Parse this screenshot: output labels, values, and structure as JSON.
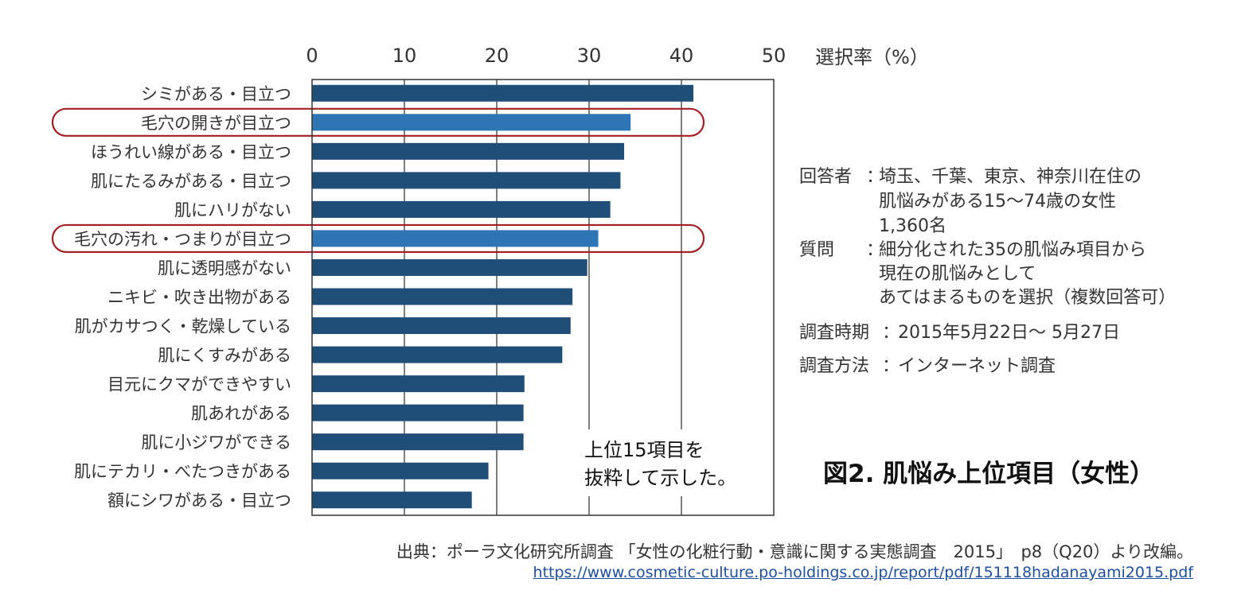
{
  "chart_data": {
    "type": "bar",
    "orientation": "horizontal",
    "axis_title": "選択率（%）",
    "xlim": [
      0,
      50
    ],
    "ticks": [
      0,
      10,
      20,
      30,
      40,
      50
    ],
    "grid": true,
    "categories": [
      "シミがある・目立つ",
      "毛穴の開きが目立つ",
      "ほうれい線がある・目立つ",
      "肌にたるみがある・目立つ",
      "肌にハリがない",
      "毛穴の汚れ・つまりが目立つ",
      "肌に透明感がない",
      "ニキビ・吹き出物がある",
      "肌がカサつく・乾燥している",
      "肌にくすみがある",
      "目元にクマができやすい",
      "肌あれがある",
      "肌に小ジワができる",
      "肌にテカリ・べたつきがある",
      "額にシワがある・目立つ"
    ],
    "values": [
      41.3,
      34.5,
      33.8,
      33.4,
      32.3,
      31.0,
      29.8,
      28.2,
      28.0,
      27.1,
      23.0,
      22.9,
      22.9,
      19.1,
      17.3
    ],
    "highlighted": [
      "毛穴の開きが目立つ",
      "毛穴の汚れ・つまりが目立つ"
    ],
    "annotation": [
      "上位15項目を",
      "抜粋して示した。"
    ],
    "colors": {
      "bar": "#1f4e79",
      "highlight_bar": "#2e75b6",
      "highlight_outline": "#a31f24",
      "grid": "#555555"
    }
  },
  "info": {
    "respondent_label": "回答者",
    "respondent_lines": [
      "埼玉、千葉、東京、神奈川在住の",
      "肌悩みがある15〜74歳の女性",
      "1,360名"
    ],
    "question_label": "質問",
    "question_lines": [
      "細分化された35の肌悩み項目から",
      "現在の肌悩みとして",
      "あてはまるものを選択（複数回答可）"
    ],
    "period_label": "調査時期",
    "period_value": "2015年5月22日〜 5月27日",
    "method_label": "調査方法",
    "method_value": "インターネット調査",
    "separator": "："
  },
  "figure_title": "図2.  肌悩み上位項目（女性）",
  "source_text": "出典：ポーラ文化研究所調査 「女性の化粧行動・意識に関する実態調査　2015」　p8（Q20）より改編。",
  "source_url": "https://www.cosmetic-culture.po-holdings.co.jp/report/pdf/151118hadanayami2015.pdf"
}
